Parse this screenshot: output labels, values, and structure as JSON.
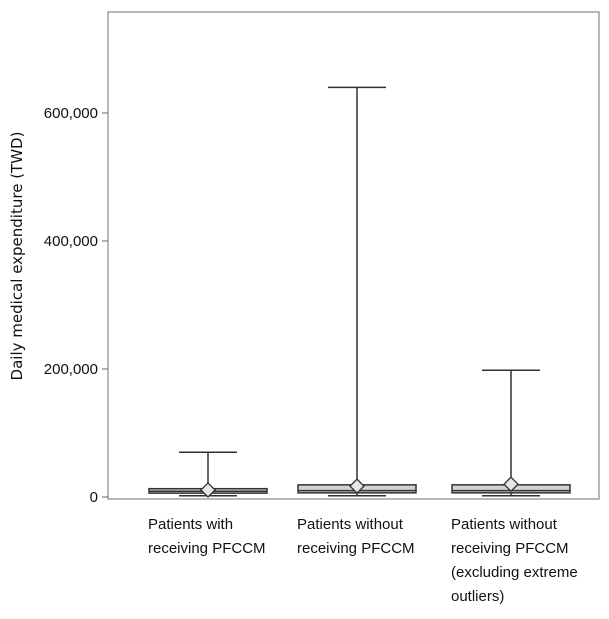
{
  "chart_data": {
    "type": "box",
    "ylabel": "Daily medical expenditure (TWD)",
    "ylim": [
      0,
      760000
    ],
    "yticks": [
      {
        "value": 0,
        "label": "0"
      },
      {
        "value": 200000,
        "label": "200,000"
      },
      {
        "value": 400000,
        "label": "400,000"
      },
      {
        "value": 600000,
        "label": "600,000"
      }
    ],
    "grid": false,
    "box_color": "#d3d3d3",
    "line_color": "#333333",
    "groups": [
      {
        "label_lines": [
          "Patients with",
          "receiving PFCCM"
        ],
        "min": 2000,
        "q1": 6000,
        "median": 9000,
        "q3": 13000,
        "max": 70000,
        "mean": 11000
      },
      {
        "label_lines": [
          "Patients without",
          "receiving PFCCM"
        ],
        "min": 2000,
        "q1": 6500,
        "median": 10000,
        "q3": 19000,
        "max": 640000,
        "mean": 17000
      },
      {
        "label_lines": [
          "Patients without",
          "receiving PFCCM",
          "(excluding extreme",
          "outliers)"
        ],
        "min": 2000,
        "q1": 6500,
        "median": 10000,
        "q3": 19000,
        "max": 198000,
        "mean": 20000
      }
    ]
  }
}
